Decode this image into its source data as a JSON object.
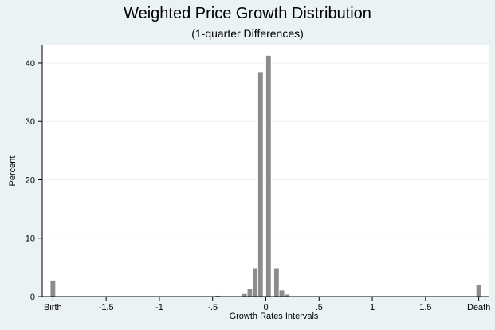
{
  "chart_data": {
    "type": "bar",
    "title": "Weighted Price Growth Distribution",
    "subtitle": "(1-quarter Differences)",
    "xlabel": "Growth Rates Intervals",
    "ylabel": "Percent",
    "ylim": [
      0,
      43
    ],
    "yticks": [
      0,
      10,
      20,
      30,
      40
    ],
    "xticks": [
      {
        "x": -2,
        "label": "Birth"
      },
      {
        "x": -1.5,
        "label": "-1.5"
      },
      {
        "x": -1,
        "label": "-1"
      },
      {
        "x": -0.5,
        "label": "-.5"
      },
      {
        "x": 0,
        "label": "0"
      },
      {
        "x": 0.5,
        "label": ".5"
      },
      {
        "x": 1,
        "label": "1"
      },
      {
        "x": 1.5,
        "label": "1.5"
      },
      {
        "x": 2,
        "label": "Death"
      }
    ],
    "bar_width": 0.05,
    "bars": [
      {
        "x": -2,
        "value": 2.8
      },
      {
        "x": -0.5,
        "value": 0.1
      },
      {
        "x": -0.45,
        "value": 0.2
      },
      {
        "x": -0.25,
        "value": 0.1
      },
      {
        "x": -0.2,
        "value": 0.5
      },
      {
        "x": -0.15,
        "value": 1.3
      },
      {
        "x": -0.1,
        "value": 4.9
      },
      {
        "x": -0.05,
        "value": 38.5
      },
      {
        "x": 0.025,
        "value": 41.3
      },
      {
        "x": 0.1,
        "value": 4.9
      },
      {
        "x": 0.15,
        "value": 1.1
      },
      {
        "x": 0.2,
        "value": 0.4
      },
      {
        "x": 0.25,
        "value": 0.1
      },
      {
        "x": 2,
        "value": 2.0
      }
    ],
    "grid": true,
    "colors": {
      "background": "#eaf2f3",
      "plot_background": "#ffffff",
      "bar": "#8c8c8c",
      "bar_edge": "#ffffff",
      "grid": "#eaf2f3"
    }
  }
}
